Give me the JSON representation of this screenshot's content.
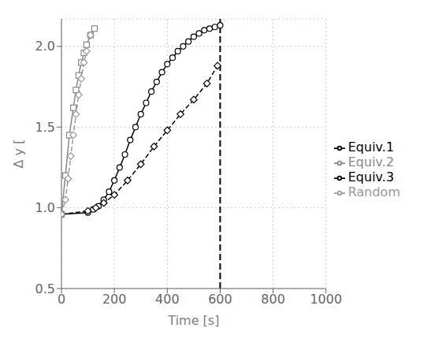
{
  "chart_data": {
    "type": "line",
    "xlabel": "Time [s]",
    "ylabel": "Δ y [",
    "series": [
      {
        "name": "Equiv.1",
        "color": "#000000",
        "line_style": "solid",
        "marker": "circle",
        "x": [
          0,
          100,
          120,
          140,
          160,
          180,
          200,
          220,
          240,
          260,
          280,
          300,
          320,
          340,
          360,
          380,
          400,
          420,
          440,
          460,
          480,
          500,
          520,
          540,
          560,
          580,
          600
        ],
        "values": [
          0.96,
          0.97,
          0.99,
          1.01,
          1.05,
          1.1,
          1.17,
          1.25,
          1.33,
          1.42,
          1.5,
          1.58,
          1.65,
          1.72,
          1.78,
          1.84,
          1.89,
          1.93,
          1.97,
          2.0,
          2.03,
          2.06,
          2.08,
          2.1,
          2.11,
          2.12,
          2.13
        ]
      },
      {
        "name": "Equiv.2",
        "color": "#888888",
        "line_style": "solid",
        "marker": "square",
        "x": [
          0,
          15,
          30,
          45,
          55,
          65,
          75,
          85,
          95,
          110,
          125
        ],
        "values": [
          0.96,
          1.2,
          1.45,
          1.62,
          1.73,
          1.82,
          1.9,
          1.96,
          2.01,
          2.07,
          2.11
        ]
      },
      {
        "name": "Equiv.3",
        "color": "#000000",
        "line_style": "dashed",
        "marker": "diamond",
        "x": [
          0,
          100,
          130,
          160,
          200,
          250,
          300,
          350,
          400,
          450,
          500,
          550,
          590
        ],
        "values": [
          0.96,
          0.98,
          1.0,
          1.03,
          1.08,
          1.17,
          1.27,
          1.38,
          1.48,
          1.58,
          1.67,
          1.77,
          1.88
        ]
      },
      {
        "name": "Random",
        "color": "#999999",
        "line_style": "dashed",
        "marker": "diamond",
        "x": [
          0,
          15,
          25,
          35,
          45,
          55,
          65,
          75,
          85,
          95,
          110
        ],
        "values": [
          0.96,
          1.05,
          1.18,
          1.32,
          1.45,
          1.58,
          1.7,
          1.8,
          1.9,
          1.97,
          2.07
        ]
      }
    ],
    "xlim": [
      0,
      1000
    ],
    "ylim": [
      0.5,
      2.17
    ],
    "xticks": [
      0,
      200,
      400,
      600,
      800,
      1000
    ],
    "yticks": [
      0.5,
      {
        "value": 1,
        "label": "1.0"
      },
      1.5,
      {
        "value": 2,
        "label": "2.0"
      }
    ],
    "grid": true,
    "legend": "right",
    "vlines": [
      600
    ]
  }
}
